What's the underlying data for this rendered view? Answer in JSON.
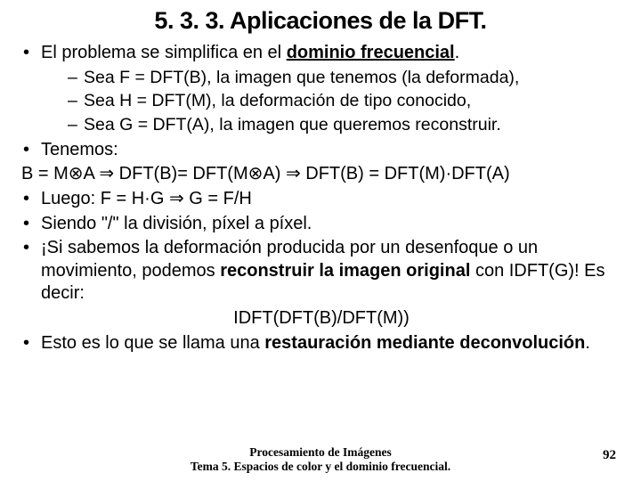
{
  "title": "5. 3. 3. Aplicaciones de la DFT.",
  "bullets": {
    "b1_pre": "El problema se simplifica en el ",
    "b1_bold": "dominio frecuencial",
    "b1_post": ".",
    "sub1": "Sea F = DFT(B), la imagen que tenemos (la deformada),",
    "sub2": "Sea H = DFT(M), la deformación de tipo conocido,",
    "sub3": "Sea G = DFT(A), la imagen que queremos reconstruir.",
    "b2": "Tenemos:",
    "eq1": "B = M⊗A  ⇒ DFT(B)= DFT(M⊗A) ⇒ DFT(B) = DFT(M)·DFT(A)",
    "b3": "Luego: F = H·G ⇒ G = F/H",
    "b4": "Siendo \"/\" la división, píxel a píxel.",
    "b5_pre": "¡Si sabemos la deformación producida por un desenfoque o un movimiento, podemos ",
    "b5_bold": "reconstruir la imagen original",
    "b5_post": " con IDFT(G)! Es decir:",
    "eq2": "IDFT(DFT(B)/DFT(M))",
    "b6_pre": "Esto es lo que se llama una ",
    "b6_bold": "restauración mediante deconvolución",
    "b6_post": "."
  },
  "footer": {
    "line1": "Procesamiento de Imágenes",
    "line2": "Tema 5. Espacios de color y el dominio frecuencial."
  },
  "page": "92"
}
